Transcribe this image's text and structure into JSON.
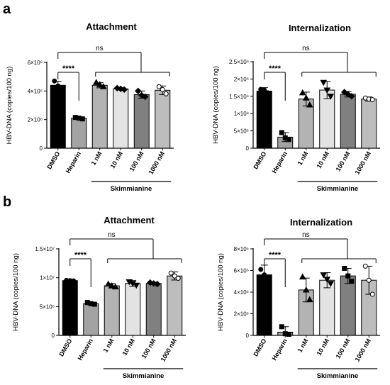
{
  "panel_letters": {
    "a": "a",
    "b": "b"
  },
  "chart_data": [
    {
      "type": "bar",
      "title": "Attachment",
      "ylabel": "HBV-DNA (copies/100 ng)",
      "categories": [
        "DMSO",
        "Heparin",
        "1 nM",
        "10 nM",
        "100 nM",
        "1000 nM"
      ],
      "group_label": "Skimmianine",
      "ylim": [
        0,
        6000000
      ],
      "yticks": [
        {
          "v": 0,
          "label": "0"
        },
        {
          "v": 2000000,
          "label": "2×10⁶"
        },
        {
          "v": 4000000,
          "label": "4×10⁶"
        },
        {
          "v": 6000000,
          "label": "6×10⁶"
        }
      ],
      "values": [
        4400000,
        2100000,
        4400000,
        4150000,
        3750000,
        4050000
      ],
      "errors": [
        280000,
        80000,
        180000,
        80000,
        250000,
        300000
      ],
      "points": [
        [
          4700000,
          4350000,
          4200000
        ],
        [
          2150000,
          2100000,
          2050000
        ],
        [
          4600000,
          4450000,
          4300000
        ],
        [
          4200000,
          4150000,
          4100000
        ],
        [
          4000000,
          3700000,
          3600000
        ],
        [
          4300000,
          4100000,
          3800000
        ]
      ],
      "marker": [
        "circle",
        "square",
        "triangle-up",
        "diamond",
        "diamond",
        "circle-open"
      ],
      "colors": [
        "#000000",
        "#a3a3a3",
        "#b3b3b3",
        "#e3e3e3",
        "#808080",
        "#bdbdbd"
      ],
      "annotations": {
        "sig": "****",
        "ns": "ns"
      }
    },
    {
      "type": "bar",
      "title": "Internalization",
      "ylabel": "HBV-DNA (copies/100 ng)",
      "categories": [
        "DMSO",
        "Heparin",
        "1 nM",
        "10 nM",
        "100 nM",
        "1000 nM"
      ],
      "group_label": "Skimmianine",
      "ylim": [
        0,
        2500000
      ],
      "yticks": [
        {
          "v": 0,
          "label": "0"
        },
        {
          "v": 500000,
          "label": "5×10⁵"
        },
        {
          "v": 1000000,
          "label": "1×10⁶"
        },
        {
          "v": 1500000,
          "label": "1.5×10⁶"
        },
        {
          "v": 2000000,
          "label": "2×10⁶"
        },
        {
          "v": 2500000,
          "label": "2.5×10⁶"
        }
      ],
      "values": [
        1650000,
        320000,
        1420000,
        1680000,
        1560000,
        1420000
      ],
      "errors": [
        100000,
        130000,
        200000,
        250000,
        80000,
        60000
      ],
      "points": [
        [
          1700000,
          1680000,
          1600000
        ],
        [
          450000,
          300000,
          250000
        ],
        [
          1600000,
          1450000,
          1250000
        ],
        [
          1900000,
          1680000,
          1500000
        ],
        [
          1620000,
          1560000,
          1500000
        ],
        [
          1450000,
          1420000,
          1400000
        ]
      ],
      "marker": [
        "circle",
        "square",
        "triangle-up",
        "triangle-down",
        "diamond",
        "circle-open"
      ],
      "colors": [
        "#000000",
        "#a3a3a3",
        "#b3b3b3",
        "#e3e3e3",
        "#808080",
        "#bdbdbd"
      ],
      "annotations": {
        "sig": "****",
        "ns": "ns"
      }
    },
    {
      "type": "bar",
      "title": "Attachment",
      "ylabel": "HBV-DNA (copies/100 ng)",
      "categories": [
        "DMSO",
        "Heparin",
        "1 nM",
        "10 nM",
        "100 nM",
        "1000 nM"
      ],
      "group_label": "Skimmianine",
      "ylim": [
        0,
        15000000
      ],
      "yticks": [
        {
          "v": 0,
          "label": "0"
        },
        {
          "v": 5000000,
          "label": "5×10⁶"
        },
        {
          "v": 10000000,
          "label": "1×10⁷"
        },
        {
          "v": 15000000,
          "label": "1.5×10⁷"
        }
      ],
      "values": [
        9500000,
        5500000,
        8600000,
        9000000,
        9000000,
        10300000
      ],
      "errors": [
        100000,
        200000,
        400000,
        500000,
        200000,
        700000
      ],
      "points": [
        [
          9550000,
          9500000,
          9450000
        ],
        [
          5700000,
          5500000,
          5400000
        ],
        [
          8900000,
          8600000,
          8400000
        ],
        [
          9300000,
          9000000,
          8700000
        ],
        [
          9150000,
          9000000,
          8900000
        ],
        [
          10800000,
          10300000,
          9900000
        ]
      ],
      "marker": [
        "circle",
        "square",
        "triangle-up",
        "triangle-down",
        "diamond",
        "circle-open"
      ],
      "colors": [
        "#000000",
        "#a3a3a3",
        "#b3b3b3",
        "#e3e3e3",
        "#808080",
        "#bdbdbd"
      ],
      "annotations": {
        "sig": "****",
        "ns": "ns"
      }
    },
    {
      "type": "bar",
      "title": "Internalization",
      "ylabel": "HBV-DNA (copies/100 ng)",
      "categories": [
        "DMSO",
        "Heparin",
        "1 nM",
        "10 nM",
        "100 nM",
        "1000 nM"
      ],
      "group_label": "Skimmianine",
      "ylim": [
        0,
        800000
      ],
      "yticks": [
        {
          "v": 0,
          "label": "0"
        },
        {
          "v": 200000,
          "label": "2×10⁵"
        },
        {
          "v": 400000,
          "label": "4×10⁵"
        },
        {
          "v": 600000,
          "label": "6×10⁵"
        },
        {
          "v": 800000,
          "label": "8×10⁵"
        }
      ],
      "values": [
        560000,
        30000,
        420000,
        510000,
        550000,
        510000
      ],
      "errors": [
        90000,
        50000,
        110000,
        70000,
        70000,
        130000
      ],
      "points": [
        [
          610000,
          560000,
          540000
        ],
        [
          80000,
          15000,
          10000
        ],
        [
          540000,
          420000,
          330000
        ],
        [
          560000,
          520000,
          480000
        ],
        [
          620000,
          550000,
          500000
        ],
        [
          640000,
          510000,
          380000
        ]
      ],
      "marker": [
        "circle",
        "square",
        "triangle-up",
        "triangle-down",
        "square",
        "circle-open"
      ],
      "colors": [
        "#000000",
        "#a3a3a3",
        "#b3b3b3",
        "#e3e3e3",
        "#808080",
        "#bdbdbd"
      ],
      "annotations": {
        "sig": "****",
        "ns": "ns"
      }
    }
  ]
}
